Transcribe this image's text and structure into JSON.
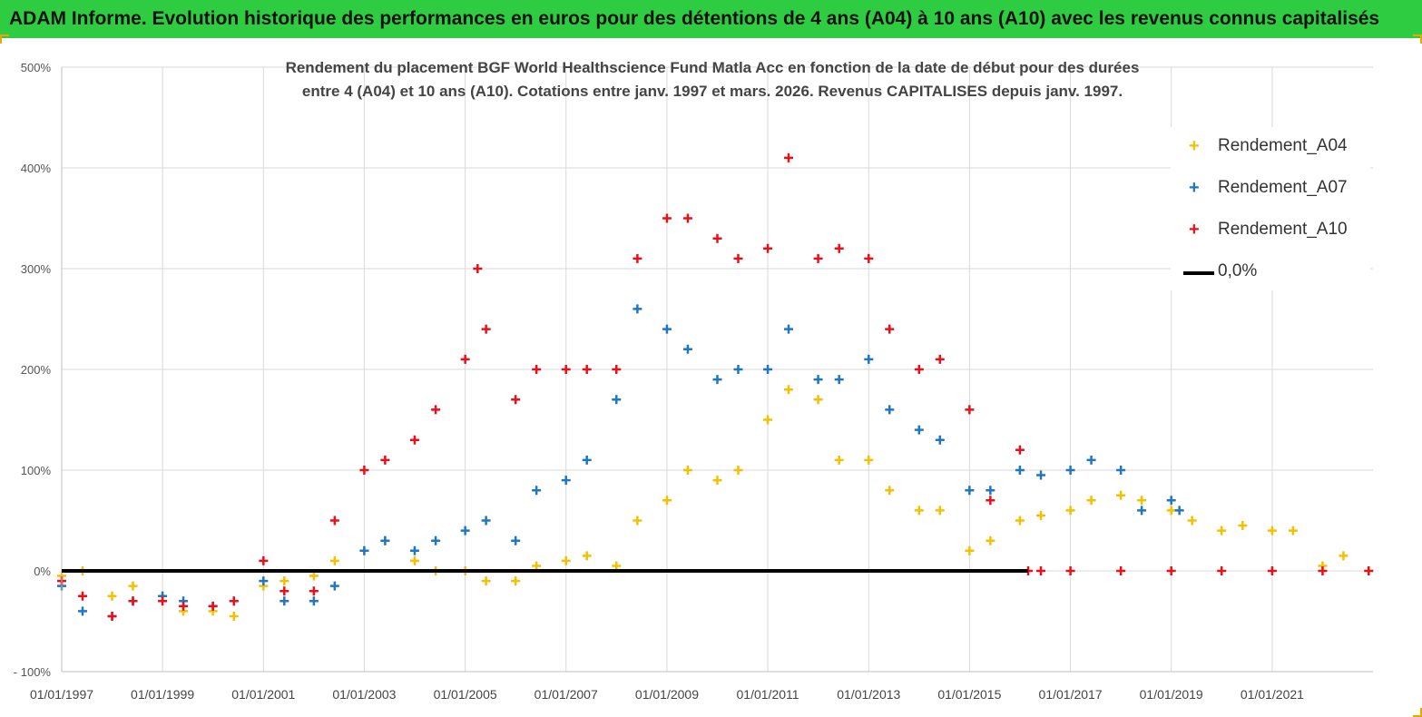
{
  "header": {
    "title": "ADAM Informe. Evolution historique des performances en euros pour des détentions de 4 ans (A04) à 10 ans (A10) avec les revenus connus capitalisés"
  },
  "chart_data": {
    "type": "scatter",
    "title_line1": "Rendement du placement BGF World Healthscience Fund Matla Acc en fonction de la date de début pour des durées",
    "title_line2": "entre 4 (A04) et 10 ans (A10). Cotations entre janv. 1997 et mars. 2026. Revenus CAPITALISES depuis janv. 1997.",
    "x_range": [
      "1997-01-01",
      "2023-01-01"
    ],
    "ylim": [
      -100,
      500
    ],
    "y_ticks": [
      -100,
      0,
      100,
      200,
      300,
      400,
      500
    ],
    "y_tick_labels": [
      "- 100%",
      "0%",
      "100%",
      "200%",
      "300%",
      "400%",
      "500%"
    ],
    "x_ticks": [
      "1997-01-01",
      "1999-01-01",
      "2001-01-01",
      "2003-01-01",
      "2005-01-01",
      "2007-01-01",
      "2009-01-01",
      "2011-01-01",
      "2013-01-01",
      "2015-01-01",
      "2017-01-01",
      "2019-01-01",
      "2021-01-01"
    ],
    "x_tick_labels": [
      "01/01/1997",
      "01/01/1999",
      "01/01/2001",
      "01/01/2003",
      "01/01/2005",
      "01/01/2007",
      "01/01/2009",
      "01/01/2011",
      "01/01/2013",
      "01/01/2015",
      "01/01/2017",
      "01/01/2019",
      "01/01/2021"
    ],
    "grid": true,
    "legend_position": "top-right",
    "series": [
      {
        "name": "Rendement_A04",
        "color": "#f5c000",
        "x": [
          "1997-01-01",
          "1997-06-01",
          "1998-01-01",
          "1998-06-01",
          "1999-01-01",
          "1999-06-01",
          "2000-01-01",
          "2000-06-01",
          "2001-01-01",
          "2001-06-01",
          "2002-01-01",
          "2002-06-01",
          "2003-01-01",
          "2003-06-01",
          "2004-01-01",
          "2004-06-01",
          "2005-01-01",
          "2005-06-01",
          "2006-01-01",
          "2006-06-01",
          "2007-01-01",
          "2007-06-01",
          "2008-01-01",
          "2008-06-01",
          "2009-01-01",
          "2009-06-01",
          "2010-01-01",
          "2010-06-01",
          "2011-01-01",
          "2011-06-01",
          "2012-01-01",
          "2012-06-01",
          "2013-01-01",
          "2013-06-01",
          "2014-01-01",
          "2014-06-01",
          "2015-01-01",
          "2015-06-01",
          "2016-01-01",
          "2016-06-01",
          "2017-01-01",
          "2017-06-01",
          "2018-01-01",
          "2018-06-01",
          "2019-01-01",
          "2019-06-01",
          "2020-01-01",
          "2020-06-01",
          "2021-01-01",
          "2021-06-01",
          "2022-01-01",
          "2022-06-01",
          "2022-12-01"
        ],
        "y": [
          -5,
          0,
          -25,
          -15,
          -25,
          -40,
          -40,
          -45,
          -15,
          -10,
          -5,
          10,
          20,
          30,
          10,
          0,
          0,
          -10,
          -10,
          5,
          10,
          15,
          5,
          50,
          70,
          100,
          90,
          100,
          150,
          180,
          170,
          110,
          110,
          80,
          60,
          60,
          20,
          30,
          50,
          55,
          60,
          70,
          75,
          70,
          60,
          50,
          40,
          45,
          40,
          40,
          5,
          15,
          0
        ]
      },
      {
        "name": "Rendement_A07",
        "color": "#1f77c4",
        "x": [
          "1997-01-01",
          "1997-06-01",
          "1998-01-01",
          "1998-06-01",
          "1999-01-01",
          "1999-06-01",
          "2000-01-01",
          "2000-06-01",
          "2001-01-01",
          "2001-06-01",
          "2002-01-01",
          "2002-06-01",
          "2003-01-01",
          "2003-06-01",
          "2004-01-01",
          "2004-06-01",
          "2005-01-01",
          "2005-06-01",
          "2006-01-01",
          "2006-06-01",
          "2007-01-01",
          "2007-06-01",
          "2008-01-01",
          "2008-06-01",
          "2009-01-01",
          "2009-06-01",
          "2010-01-01",
          "2010-06-01",
          "2011-01-01",
          "2011-06-01",
          "2012-01-01",
          "2012-06-01",
          "2013-01-01",
          "2013-06-01",
          "2014-01-01",
          "2014-06-01",
          "2015-01-01",
          "2015-06-01",
          "2016-01-01",
          "2016-06-01",
          "2017-01-01",
          "2017-06-01",
          "2018-01-01",
          "2018-06-01",
          "2019-01-01",
          "2019-03-01"
        ],
        "y": [
          -15,
          -40,
          -45,
          -30,
          -25,
          -30,
          -35,
          -30,
          -10,
          -30,
          -30,
          -15,
          20,
          30,
          20,
          30,
          40,
          50,
          30,
          80,
          90,
          110,
          170,
          260,
          240,
          220,
          190,
          200,
          200,
          240,
          190,
          190,
          210,
          160,
          140,
          130,
          80,
          80,
          100,
          95,
          100,
          110,
          100,
          60,
          70,
          60
        ]
      },
      {
        "name": "Rendement_A10",
        "color": "#e8101a",
        "x": [
          "1997-01-01",
          "1997-06-01",
          "1998-01-01",
          "1998-06-01",
          "1999-01-01",
          "1999-06-01",
          "2000-01-01",
          "2000-06-01",
          "2001-01-01",
          "2001-06-01",
          "2002-01-01",
          "2002-06-01",
          "2003-01-01",
          "2003-06-01",
          "2004-01-01",
          "2004-06-01",
          "2005-01-01",
          "2005-04-01",
          "2005-06-01",
          "2006-01-01",
          "2006-06-01",
          "2007-01-01",
          "2007-06-01",
          "2008-01-01",
          "2008-06-01",
          "2009-01-01",
          "2009-06-01",
          "2010-01-01",
          "2010-06-01",
          "2011-01-01",
          "2011-06-01",
          "2012-01-01",
          "2012-06-01",
          "2013-01-01",
          "2013-06-01",
          "2014-01-01",
          "2014-06-01",
          "2015-01-01",
          "2015-06-01",
          "2016-01-01",
          "2016-03-01",
          "2016-06-01",
          "2017-01-01",
          "2018-01-01",
          "2019-01-01",
          "2020-01-01",
          "2021-01-01",
          "2022-01-01",
          "2022-12-01"
        ],
        "y": [
          -10,
          -25,
          -45,
          -30,
          -30,
          -35,
          -35,
          -30,
          10,
          -20,
          -20,
          50,
          100,
          110,
          130,
          160,
          210,
          300,
          240,
          170,
          200,
          200,
          200,
          200,
          310,
          350,
          350,
          330,
          310,
          320,
          410,
          310,
          320,
          310,
          240,
          200,
          210,
          160,
          70,
          120,
          0,
          0,
          0,
          0,
          0,
          0,
          0,
          0,
          0
        ]
      }
    ],
    "reference_line": {
      "name": "0,0%",
      "y": 0,
      "x_end": "2016-03-01",
      "color": "#000000"
    }
  }
}
